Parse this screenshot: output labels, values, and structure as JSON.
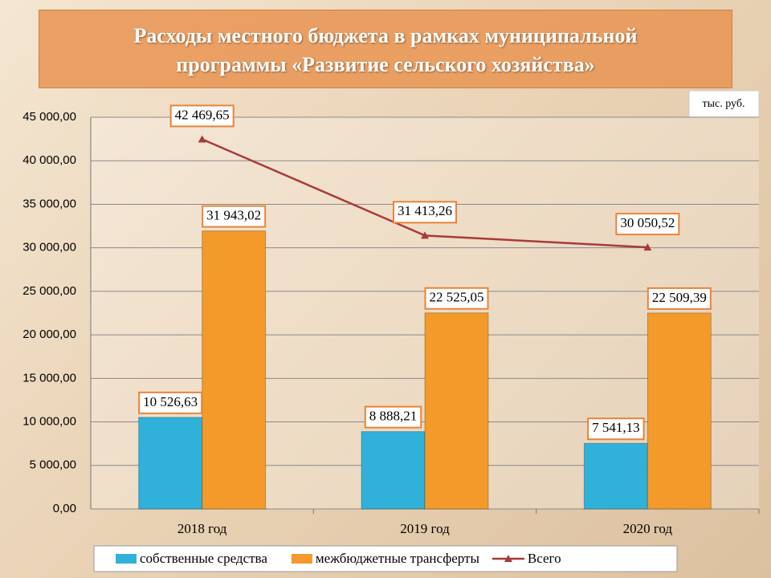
{
  "chart_data": {
    "type": "bar",
    "title": "Расходы местного бюджета в рамках муниципальной программы «Развитие сельского хозяйства»",
    "unit": "тыс. руб.",
    "categories": [
      "2018 год",
      "2019 год",
      "2020 год"
    ],
    "series": [
      {
        "name": "собственные средства",
        "type": "bar",
        "color": "#2fb1da",
        "values": [
          10526.63,
          8888.21,
          7541.13
        ],
        "value_labels": [
          "10 526,63",
          "8 888,21",
          "7 541,13"
        ]
      },
      {
        "name": "межбюджетные трансферты",
        "type": "bar",
        "color": "#f39a2b",
        "values": [
          31943.02,
          22525.05,
          22509.39
        ],
        "value_labels": [
          "31 943,02",
          "22 525,05",
          "22 509,39"
        ]
      },
      {
        "name": "Всего",
        "type": "line",
        "color": "#a83a3a",
        "values": [
          42469.65,
          31413.26,
          30050.52
        ],
        "value_labels": [
          "42 469,65",
          "31 413,26",
          "30 050,52"
        ]
      }
    ],
    "ylim": [
      0,
      45000
    ],
    "yticks": [
      {
        "value": 0,
        "label": "0,00"
      },
      {
        "value": 5000,
        "label": "5 000,00"
      },
      {
        "value": 10000,
        "label": "10 000,00"
      },
      {
        "value": 15000,
        "label": "15 000,00"
      },
      {
        "value": 20000,
        "label": "20 000,00"
      },
      {
        "value": 25000,
        "label": "25 000,00"
      },
      {
        "value": 30000,
        "label": "30 000,00"
      },
      {
        "value": 35000,
        "label": "35 000,00"
      },
      {
        "value": 40000,
        "label": "40 000,00"
      },
      {
        "value": 45000,
        "label": "45 000,00"
      }
    ],
    "grid": true,
    "legend": "bottom"
  }
}
